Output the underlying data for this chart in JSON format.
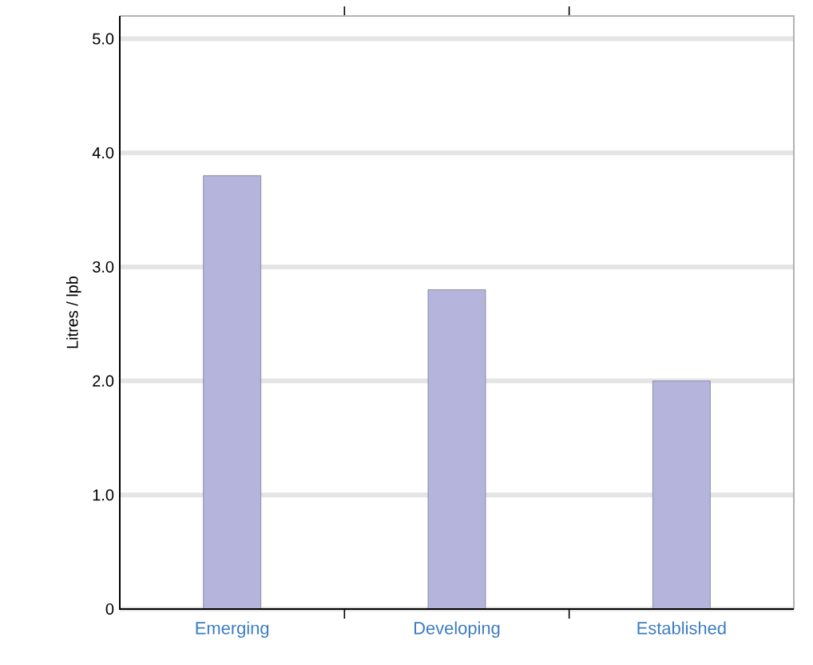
{
  "chart_data": {
    "type": "bar",
    "ylabel": "Litres / lpb",
    "categories": [
      "Emerging",
      "Developing",
      "Established"
    ],
    "values": [
      3.8,
      2.8,
      2.0
    ],
    "color": "#b4b4dc",
    "ylim": [
      0,
      5.2
    ],
    "yticks": [
      0,
      {
        "value": 1,
        "label": "1.0"
      },
      {
        "value": 2,
        "label": "2.0"
      },
      {
        "value": 3,
        "label": "3.0"
      },
      {
        "value": 4,
        "label": "4.0"
      },
      {
        "value": 5,
        "label": "5.0"
      }
    ],
    "grid": "y"
  }
}
